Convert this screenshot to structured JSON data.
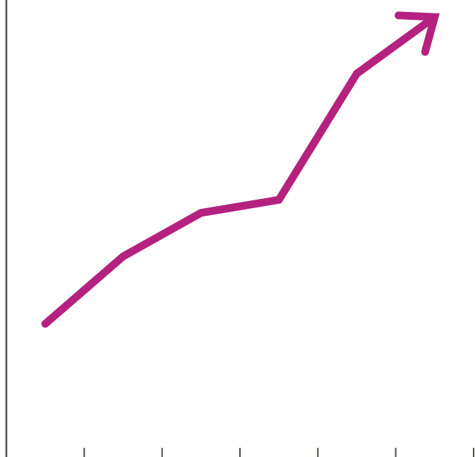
{
  "chart_data": {
    "type": "line",
    "title": "",
    "xlabel": "",
    "ylabel": "",
    "x": [
      0.5,
      1.5,
      2.5,
      3.5,
      4.5,
      5.5
    ],
    "series": [
      {
        "values": [
          28.5,
          44,
          54,
          57,
          86,
          99
        ]
      }
    ],
    "xlim": [
      0,
      6
    ],
    "ylim": [
      0,
      100
    ],
    "x_tick_count": 7,
    "grid": false,
    "legend": "none",
    "line_end": "arrow",
    "colors": {
      "line": "#b5217f",
      "axis": "#4a4a40"
    }
  }
}
